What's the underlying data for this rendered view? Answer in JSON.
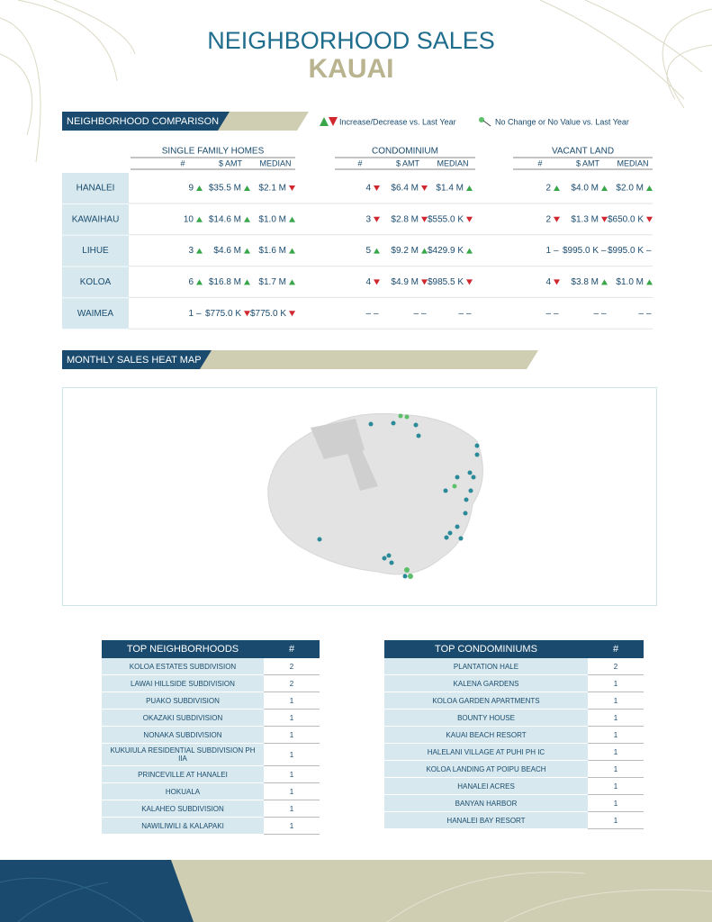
{
  "header": {
    "title": "NEIGHBORHOOD SALES",
    "subtitle": "KAUAI"
  },
  "comparison": {
    "heading": "NEIGHBORHOOD COMPARISON",
    "legend": [
      "Increase/Decrease vs. Last Year",
      "No Change or No Value vs. Last Year"
    ],
    "groups": [
      "SINGLE FAMILY HOMES",
      "CONDOMINIUM",
      "VACANT LAND"
    ],
    "columns": [
      "#",
      "$ AMT",
      "MEDIAN"
    ],
    "rows": [
      {
        "name": "HANALEI",
        "cells": [
          {
            "value": "9",
            "trend": "up"
          },
          {
            "value": "$35.5 M",
            "trend": "up"
          },
          {
            "value": "$2.1 M",
            "trend": "down"
          },
          {
            "value": "4",
            "trend": "down"
          },
          {
            "value": "$6.4 M",
            "trend": "down"
          },
          {
            "value": "$1.4 M",
            "trend": "up"
          },
          {
            "value": "2",
            "trend": "up"
          },
          {
            "value": "$4.0 M",
            "trend": "up"
          },
          {
            "value": "$2.0 M",
            "trend": "up"
          }
        ]
      },
      {
        "name": "KAWAIHAU",
        "cells": [
          {
            "value": "10",
            "trend": "up"
          },
          {
            "value": "$14.6 M",
            "trend": "up"
          },
          {
            "value": "$1.0 M",
            "trend": "up"
          },
          {
            "value": "3",
            "trend": "down"
          },
          {
            "value": "$2.8 M",
            "trend": "down"
          },
          {
            "value": "$555.0 K",
            "trend": "down"
          },
          {
            "value": "2",
            "trend": "down"
          },
          {
            "value": "$1.3 M",
            "trend": "down"
          },
          {
            "value": "$650.0 K",
            "trend": "down"
          }
        ]
      },
      {
        "name": "LIHUE",
        "cells": [
          {
            "value": "3",
            "trend": "up"
          },
          {
            "value": "$4.6 M",
            "trend": "up"
          },
          {
            "value": "$1.6 M",
            "trend": "up"
          },
          {
            "value": "5",
            "trend": "up"
          },
          {
            "value": "$9.2 M",
            "trend": "up"
          },
          {
            "value": "$429.9 K",
            "trend": "up"
          },
          {
            "value": "1",
            "trend": "–"
          },
          {
            "value": "$995.0 K",
            "trend": "–"
          },
          {
            "value": "$995.0 K",
            "trend": "–"
          }
        ]
      },
      {
        "name": "KOLOA",
        "cells": [
          {
            "value": "6",
            "trend": "up"
          },
          {
            "value": "$16.8 M",
            "trend": "up"
          },
          {
            "value": "$1.7 M",
            "trend": "up"
          },
          {
            "value": "4",
            "trend": "down"
          },
          {
            "value": "$4.9 M",
            "trend": "down"
          },
          {
            "value": "$985.5 K",
            "trend": "down"
          },
          {
            "value": "4",
            "trend": "down"
          },
          {
            "value": "$3.8 M",
            "trend": "up"
          },
          {
            "value": "$1.0 M",
            "trend": "up"
          }
        ]
      },
      {
        "name": "WAIMEA",
        "cells": [
          {
            "value": "1",
            "trend": "–"
          },
          {
            "value": "$775.0 K",
            "trend": "down"
          },
          {
            "value": "$775.0 K",
            "trend": "down"
          },
          {
            "value": "–",
            "trend": "–"
          },
          {
            "value": "–",
            "trend": "–"
          },
          {
            "value": "–",
            "trend": "–"
          },
          {
            "value": "–",
            "trend": "–"
          },
          {
            "value": "–",
            "trend": "–"
          },
          {
            "value": "–",
            "trend": "–"
          }
        ]
      }
    ]
  },
  "heat_map": {
    "heading": "MONTHLY SALES HEAT MAP"
  },
  "top_neighborhoods": {
    "heading": "TOP NEIGHBORHOODS",
    "count_header": "#",
    "rows": [
      [
        "KOLOA ESTATES SUBDIVISION",
        2
      ],
      [
        "LAWAI HILLSIDE SUBDIVISION",
        2
      ],
      [
        "PUAKO SUBDIVISION",
        1
      ],
      [
        "OKAZAKI SUBDIVISION",
        1
      ],
      [
        "NONAKA SUBDIVISION",
        1
      ],
      [
        "KUKUIULA RESIDENTIAL SUBDIVISION PH IIA",
        1
      ],
      [
        "PRINCEVILLE AT HANALEI",
        1
      ],
      [
        "HOKUALA",
        1
      ],
      [
        "KALAHEO SUBDIVISION",
        1
      ],
      [
        "NAWILIWILI & KALAPAKI",
        1
      ]
    ]
  },
  "top_condominiums": {
    "heading": "TOP CONDOMINIUMS",
    "count_header": "#",
    "rows": [
      [
        "PLANTATION HALE",
        2
      ],
      [
        "KALENA GARDENS",
        1
      ],
      [
        "KOLOA GARDEN APARTMENTS",
        1
      ],
      [
        "BOUNTY HOUSE",
        1
      ],
      [
        "KAUAI BEACH RESORT",
        1
      ],
      [
        "HALELANI VILLAGE AT PUHI PH IC",
        1
      ],
      [
        "KOLOA LANDING AT POIPU BEACH",
        1
      ],
      [
        "HANALEI ACRES",
        1
      ],
      [
        "BANYAN HARBOR",
        1
      ],
      [
        "HANALEI BAY RESORT",
        1
      ]
    ]
  }
}
